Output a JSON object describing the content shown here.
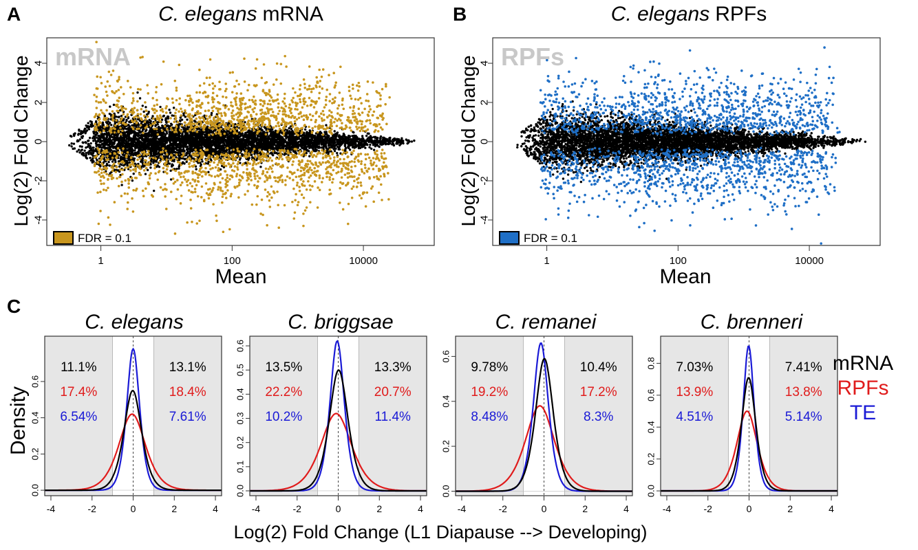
{
  "panels_top": [
    {
      "letter": "A",
      "title_species": "C. elegans",
      "title_kind": "mRNA",
      "watermark": "mRNA",
      "ylabel": "Log(2) Fold Change",
      "xlabel": "Mean",
      "legend": "FDR = 0.1",
      "sig_color": "#c8961e",
      "x_ticks": [
        "1",
        "100",
        "10000"
      ],
      "y_ticks": [
        "-4",
        "-2",
        "0",
        "2",
        "4"
      ]
    },
    {
      "letter": "B",
      "title_species": "C. elegans",
      "title_kind": "RPFs",
      "watermark": "RPFs",
      "ylabel": "Log(2) Fold Change",
      "xlabel": "Mean",
      "legend": "FDR = 0.1",
      "sig_color": "#1f6fc6",
      "x_ticks": [
        "1",
        "100",
        "10000"
      ],
      "y_ticks": [
        "-4",
        "-2",
        "0",
        "2",
        "4"
      ]
    }
  ],
  "panel_c": {
    "letter": "C",
    "ylabel": "Density",
    "xlabel": "Log(2) Fold Change (L1 Diapause --> Developing)",
    "legend": [
      {
        "label": "mRNA",
        "color": "#000000"
      },
      {
        "label": "RPFs",
        "color": "#e01b1b"
      },
      {
        "label": "TE",
        "color": "#1a1ad6"
      }
    ],
    "x_ticks": [
      "-4",
      "-2",
      "0",
      "2",
      "4"
    ]
  },
  "chart_data": [
    {
      "type": "scatter",
      "title": "C. elegans mRNA",
      "xlabel": "Mean",
      "ylabel": "Log(2) Fold Change",
      "x_scale": "log10",
      "xlim": [
        0.15,
        120000
      ],
      "ylim": [
        -5.3,
        5.3
      ],
      "series": [
        {
          "name": "FDR = 0.1",
          "color": "#c8961e"
        }
      ]
    },
    {
      "type": "scatter",
      "title": "C. elegans RPFs",
      "xlabel": "Mean",
      "ylabel": "Log(2) Fold Change",
      "x_scale": "log10",
      "xlim": [
        0.15,
        120000
      ],
      "ylim": [
        -5.3,
        5.3
      ],
      "series": [
        {
          "name": "FDR = 0.1",
          "color": "#1f6fc6"
        }
      ]
    },
    {
      "type": "line",
      "title": "C. elegans",
      "xlim": [
        -4.3,
        4.3
      ],
      "ylim": [
        -0.03,
        0.85
      ],
      "y_ticks": [
        "0.0",
        "0.2",
        "0.4",
        "0.6"
      ],
      "shaded_regions": [
        [
          -4.3,
          -1
        ],
        [
          1,
          4.3
        ]
      ],
      "percent_labels": {
        "left": [
          "11.1%",
          "17.4%",
          "6.54%"
        ],
        "right": [
          "13.1%",
          "18.4%",
          "7.61%"
        ]
      },
      "series": [
        {
          "name": "mRNA",
          "peak": 0.55,
          "mu": -0.02,
          "sigma": 0.52,
          "skew": 0.0
        },
        {
          "name": "RPFs",
          "peak": 0.42,
          "mu": -0.05,
          "sigma": 0.78,
          "skew": 0.0
        },
        {
          "name": "TE",
          "peak": 0.78,
          "mu": 0.0,
          "sigma": 0.38,
          "skew": 0.0
        }
      ]
    },
    {
      "type": "line",
      "title": "C. briggsae",
      "xlim": [
        -4.3,
        4.3
      ],
      "ylim": [
        -0.02,
        0.64
      ],
      "y_ticks": [
        "0.0",
        "0.1",
        "0.2",
        "0.3",
        "0.4",
        "0.5",
        "0.6"
      ],
      "shaded_regions": [
        [
          -4.3,
          -1
        ],
        [
          1,
          4.3
        ]
      ],
      "percent_labels": {
        "left": [
          "13.5%",
          "22.2%",
          "10.2%"
        ],
        "right": [
          "13.3%",
          "20.7%",
          "11.4%"
        ]
      },
      "series": [
        {
          "name": "mRNA",
          "peak": 0.5,
          "mu": 0.02,
          "sigma": 0.55,
          "skew": 0.0
        },
        {
          "name": "RPFs",
          "peak": 0.32,
          "mu": -0.1,
          "sigma": 0.9,
          "skew": 0.0
        },
        {
          "name": "TE",
          "peak": 0.62,
          "mu": -0.05,
          "sigma": 0.42,
          "skew": 0.0
        }
      ]
    },
    {
      "type": "line",
      "title": "C. remanei",
      "xlim": [
        -4.3,
        4.3
      ],
      "ylim": [
        -0.02,
        0.69
      ],
      "y_ticks": [
        "0.0",
        "0.2",
        "0.4",
        "0.6"
      ],
      "shaded_regions": [
        [
          -4.3,
          -1
        ],
        [
          1,
          4.3
        ]
      ],
      "percent_labels": {
        "left": [
          "9.78%",
          "19.2%",
          "8.48%"
        ],
        "right": [
          "10.4%",
          "17.2%",
          "8.3%"
        ]
      },
      "series": [
        {
          "name": "mRNA",
          "peak": 0.59,
          "mu": 0.02,
          "sigma": 0.52,
          "skew": 0.0
        },
        {
          "name": "RPFs",
          "peak": 0.38,
          "mu": -0.2,
          "sigma": 0.85,
          "skew": 0.0
        },
        {
          "name": "TE",
          "peak": 0.66,
          "mu": -0.15,
          "sigma": 0.44,
          "skew": 0.0
        }
      ]
    },
    {
      "type": "line",
      "title": "C. brenneri",
      "xlim": [
        -4.3,
        4.3
      ],
      "ylim": [
        -0.03,
        0.97
      ],
      "y_ticks": [
        "0.0",
        "0.2",
        "0.4",
        "0.6",
        "0.8"
      ],
      "shaded_regions": [
        [
          -4.3,
          -1
        ],
        [
          1,
          4.3
        ]
      ],
      "percent_labels": {
        "left": [
          "7.03%",
          "13.9%",
          "4.51%"
        ],
        "right": [
          "7.41%",
          "13.8%",
          "5.14%"
        ]
      },
      "series": [
        {
          "name": "mRNA",
          "peak": 0.71,
          "mu": -0.02,
          "sigma": 0.42,
          "skew": 0.0
        },
        {
          "name": "RPFs",
          "peak": 0.5,
          "mu": -0.1,
          "sigma": 0.6,
          "skew": 0.0
        },
        {
          "name": "TE",
          "peak": 0.91,
          "mu": -0.02,
          "sigma": 0.32,
          "skew": 0.0
        }
      ]
    }
  ]
}
